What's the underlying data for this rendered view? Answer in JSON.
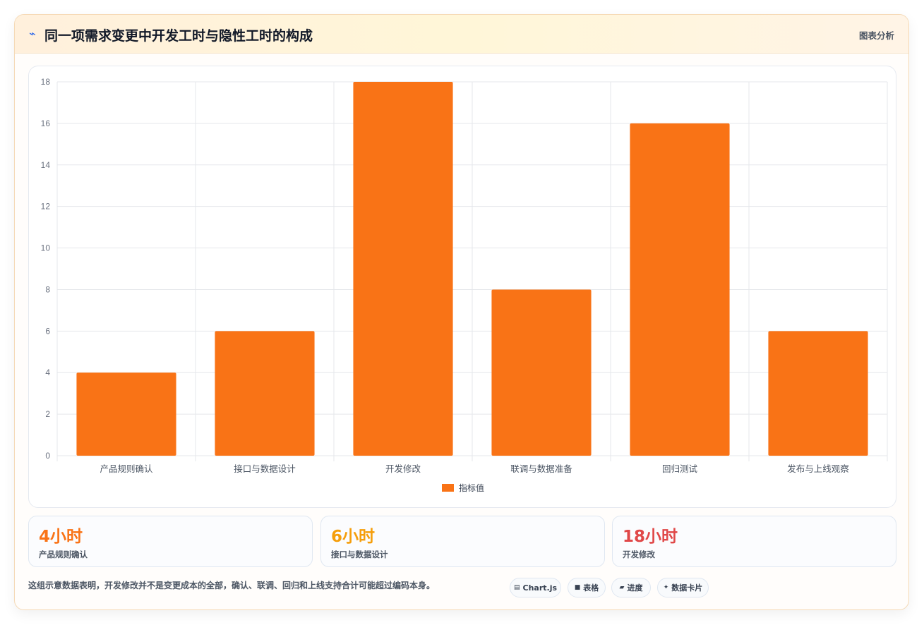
{
  "header": {
    "icon": "lightning-icon",
    "title": "同一项需求变更中开发工时与隐性工时的构成",
    "tag": "图表分析"
  },
  "chart_data": {
    "type": "bar",
    "categories": [
      "产品规则确认",
      "接口与数据设计",
      "开发修改",
      "联调与数据准备",
      "回归测试",
      "发布与上线观察"
    ],
    "series": [
      {
        "name": "指标值",
        "values": [
          4,
          6,
          18,
          8,
          16,
          6
        ]
      }
    ],
    "ylim": [
      0,
      18
    ],
    "yticks": [
      0,
      2,
      4,
      6,
      8,
      10,
      12,
      14,
      16,
      18
    ],
    "grid": true,
    "legend": "bottom",
    "colors": {
      "bar": "#f97316",
      "grid": "#e5e7eb",
      "axis_text": "#6b7280"
    }
  },
  "stats": [
    {
      "value": "4小时",
      "label": "产品规则确认",
      "color": "#f97316"
    },
    {
      "value": "6小时",
      "label": "接口与数据设计",
      "color": "#f59e0b"
    },
    {
      "value": "18小时",
      "label": "开发修改",
      "color": "#e04848"
    }
  ],
  "footnote": "这组示意数据表明，开发修改并不是变更成本的全部，确认、联调、回归和上线支持合计可能超过编码本身。",
  "chips": [
    {
      "icon": "▤",
      "icon_name": "chart-icon",
      "label": "Chart.js"
    },
    {
      "icon": "■",
      "icon_name": "table-icon",
      "label": "表格"
    },
    {
      "icon": "▰",
      "icon_name": "progress-icon",
      "label": "进度"
    },
    {
      "icon": "✦",
      "icon_name": "sparkle-icon",
      "label": "数据卡片"
    }
  ]
}
